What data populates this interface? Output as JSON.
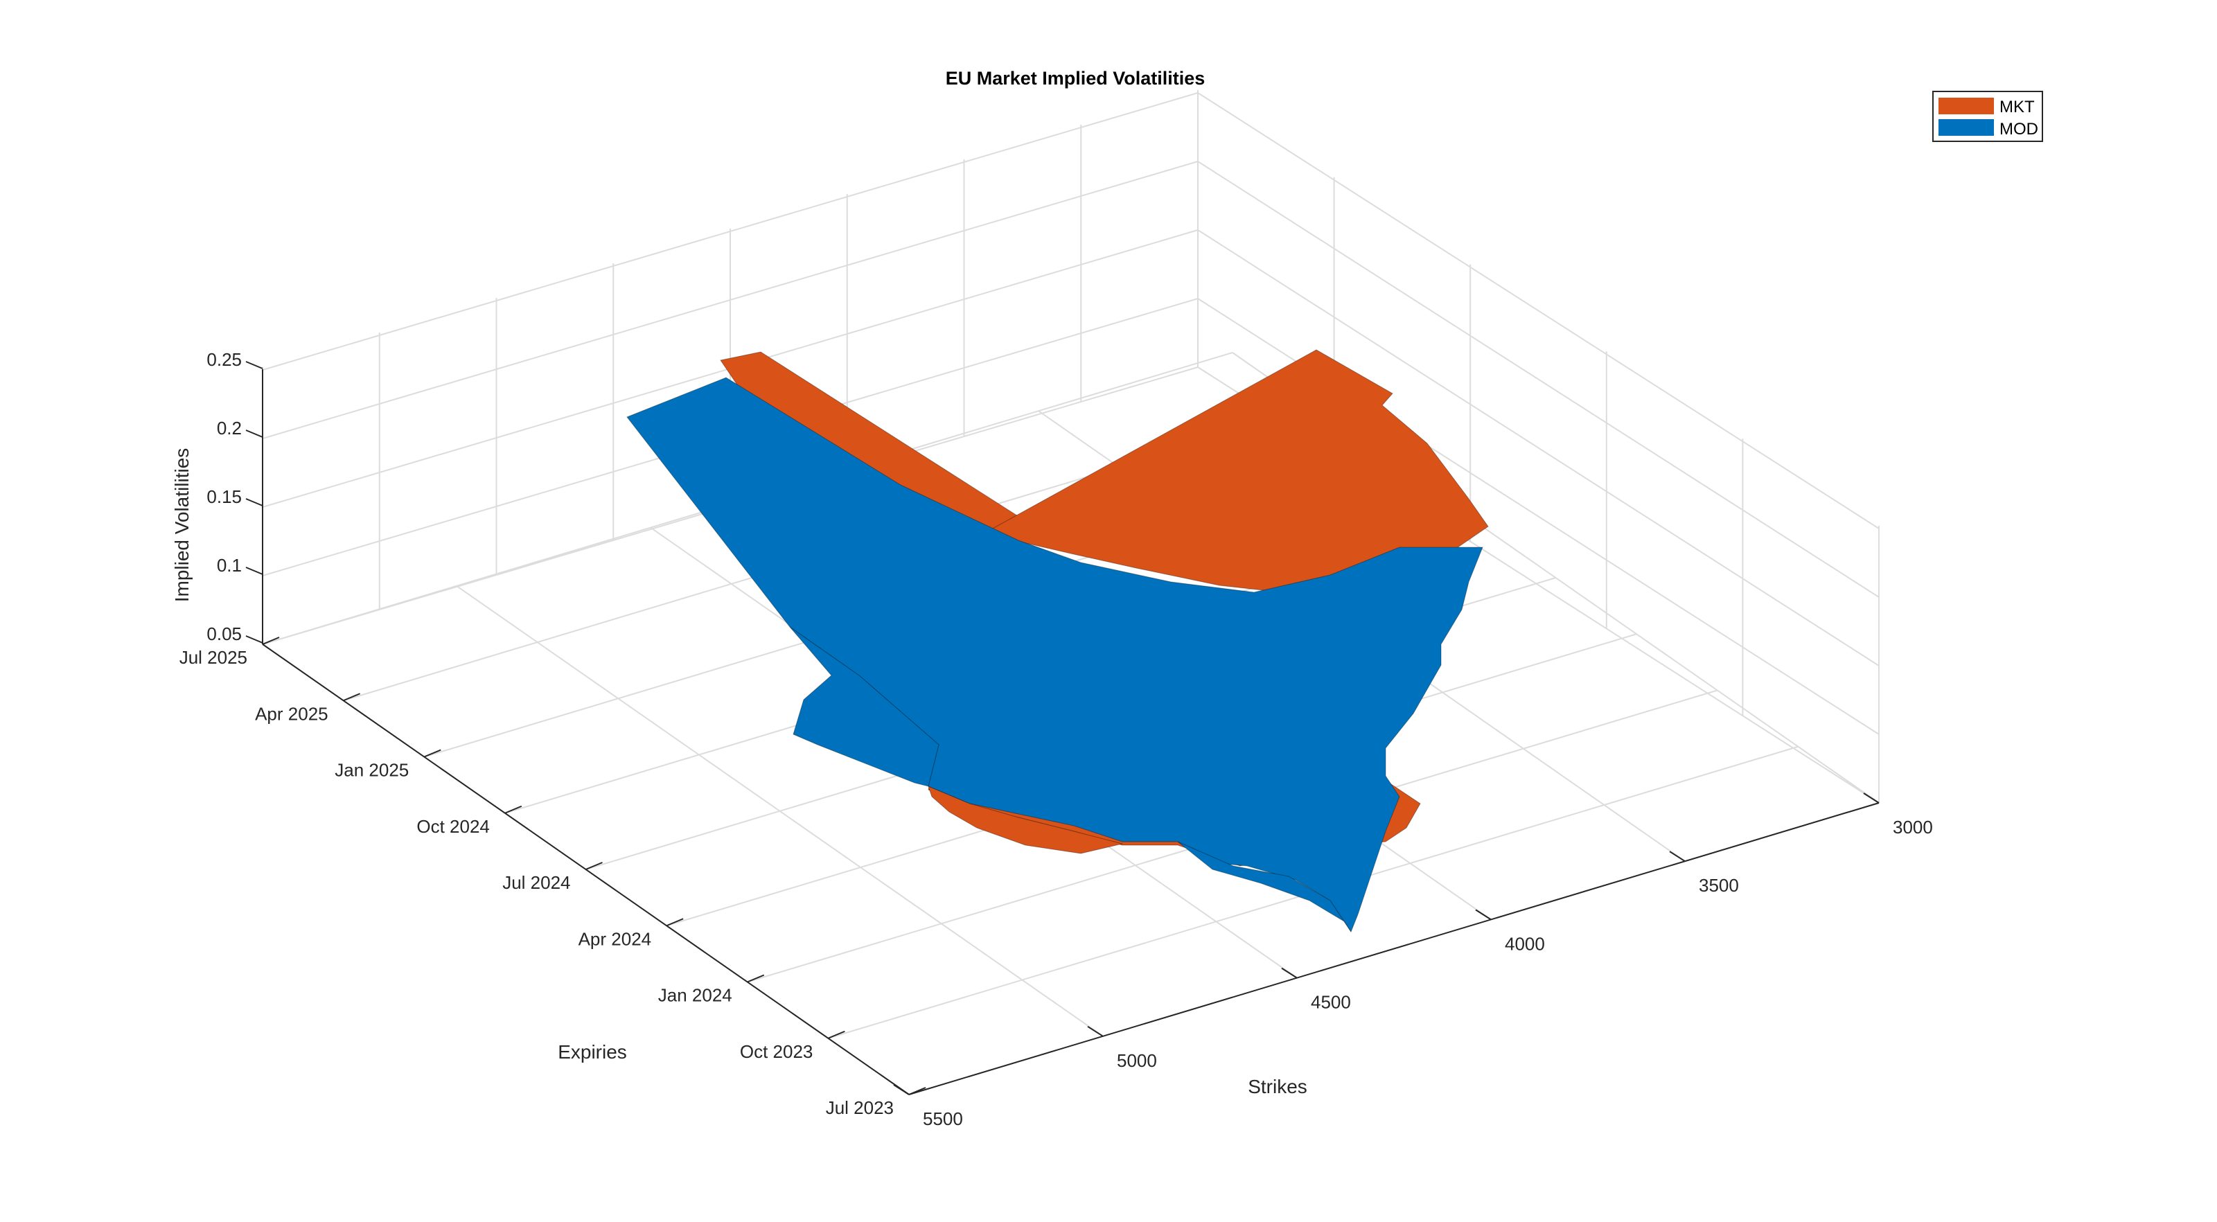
{
  "chart_data": {
    "type": "surface",
    "title": "EU Market Implied Volatilities",
    "xlabel": "Strikes",
    "ylabel": "Expiries",
    "zlabel": "Implied Volatilities",
    "x_ticks": [
      "3000",
      "3500",
      "4000",
      "4500",
      "5000",
      "5500"
    ],
    "x_tick_values": [
      3000,
      3500,
      4000,
      4500,
      5000,
      5500
    ],
    "y_ticks": [
      "Jul 2023",
      "Oct 2023",
      "Jan 2024",
      "Apr 2024",
      "Jul 2024",
      "Oct 2024",
      "Jan 2025",
      "Apr 2025",
      "Jul 2025"
    ],
    "z_ticks": [
      "0.05",
      "0.1",
      "0.15",
      "0.2",
      "0.25"
    ],
    "z_tick_values": [
      0.05,
      0.1,
      0.15,
      0.2,
      0.25
    ],
    "xlim": [
      3000,
      5500
    ],
    "zlim": [
      0.05,
      0.25
    ],
    "grid": true,
    "legend_position": "top-right",
    "series": [
      {
        "name": "MKT",
        "color": "#D95319"
      },
      {
        "name": "MOD",
        "color": "#0072BD"
      }
    ]
  }
}
